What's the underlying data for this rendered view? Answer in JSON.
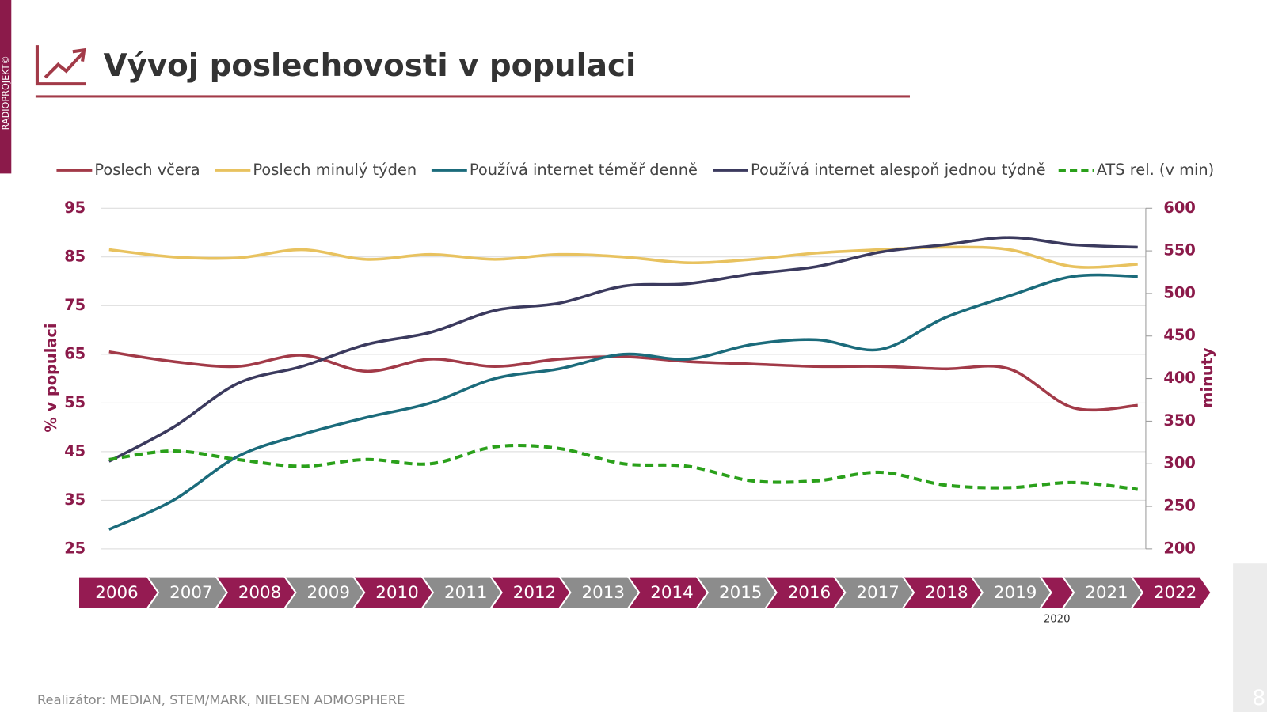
{
  "side_label": "RADIOPROJEKT©",
  "title": "Vývoj poslechovosti v populaci",
  "source": "Realizátor: MEDIAN, STEM/MARK, NIELSEN ADMOSPHERE",
  "page_number": "8",
  "chart_data": {
    "type": "line",
    "categories": [
      "2006",
      "2007",
      "2008",
      "2009",
      "2010",
      "2011",
      "2012",
      "2013",
      "2014",
      "2015",
      "2016",
      "2017",
      "2018",
      "2019",
      "2020",
      "2021",
      "2022"
    ],
    "ylabel": "% v populaci",
    "y2label": "minuty",
    "ylim": [
      25,
      95
    ],
    "yticks": [
      25,
      35,
      45,
      55,
      65,
      75,
      85,
      95
    ],
    "y2lim": [
      200,
      600
    ],
    "y2ticks": [
      200,
      250,
      300,
      350,
      400,
      450,
      500,
      550,
      600
    ],
    "grid": true,
    "legend": "top",
    "series": [
      {
        "name": "Poslech včera",
        "color": "#a23a48",
        "values": [
          65.5,
          63.5,
          62.5,
          64.8,
          61.5,
          64,
          62.5,
          64,
          64.5,
          63.5,
          63,
          62.5,
          62.5,
          62,
          62,
          54,
          54.5
        ]
      },
      {
        "name": "Poslech minulý týden",
        "color": "#e8c25f",
        "values": [
          86.5,
          85,
          84.8,
          86.5,
          84.5,
          85.5,
          84.5,
          85.5,
          85,
          83.8,
          84.5,
          85.8,
          86.5,
          87,
          86.5,
          83,
          83.5
        ]
      },
      {
        "name": "Používá internet téměř denně",
        "color": "#1b6b7b",
        "values": [
          29,
          35,
          44,
          48.5,
          52,
          55,
          60,
          62,
          65,
          64,
          67,
          68,
          66,
          72.5,
          77,
          81,
          81
        ]
      },
      {
        "name": "Používá internet alespoň jednou týdně",
        "color": "#3b3a5e",
        "values": [
          43,
          50,
          59,
          62.5,
          67,
          69.5,
          74,
          75.5,
          79,
          79.5,
          81.5,
          83,
          86,
          87.5,
          89,
          87.5,
          87
        ]
      },
      {
        "name": "ATS rel. (v min)",
        "color": "#2aa01a",
        "dashed": true,
        "axis": "y2",
        "values": [
          305,
          315,
          305,
          297,
          305,
          300,
          320,
          318,
          300,
          297,
          280,
          280,
          290,
          275,
          272,
          278,
          270
        ]
      }
    ]
  }
}
